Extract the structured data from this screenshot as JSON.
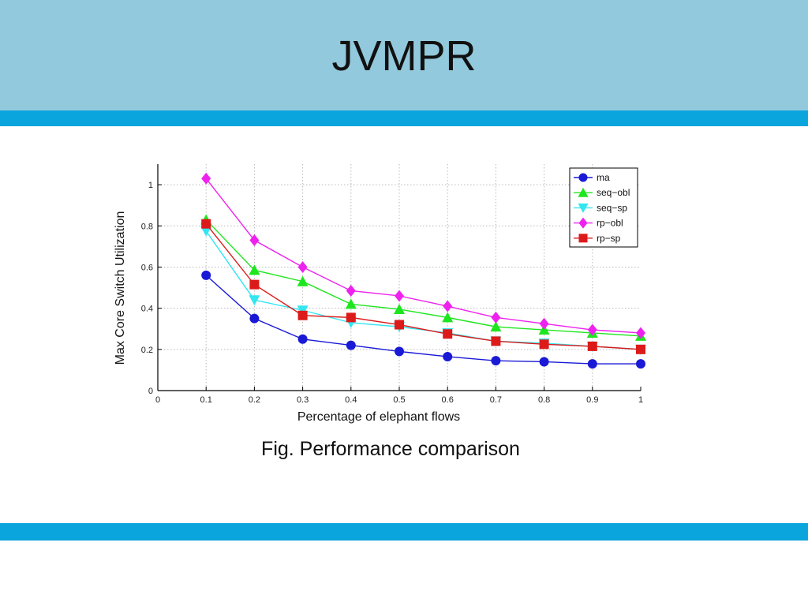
{
  "slide": {
    "title": "JVMPR",
    "caption": "Fig. Performance comparison"
  },
  "colors": {
    "title_band": "#92c9dc",
    "stripe": "#0aa5dd"
  },
  "chart_data": {
    "type": "line",
    "xlabel": "Percentage of elephant flows",
    "ylabel": "Max Core Switch Utilization",
    "xlim": [
      0,
      1
    ],
    "ylim": [
      0,
      1.1
    ],
    "grid": true,
    "legend_position": "top-right",
    "x_ticks": [
      "0",
      "0.1",
      "0.2",
      "0.3",
      "0.4",
      "0.5",
      "0.6",
      "0.7",
      "0.8",
      "0.9",
      "1"
    ],
    "y_ticks": [
      "0",
      "0.2",
      "0.4",
      "0.6",
      "0.8",
      "1"
    ],
    "x": [
      0.1,
      0.2,
      0.3,
      0.4,
      0.5,
      0.6,
      0.7,
      0.8,
      0.9,
      1.0
    ],
    "series": [
      {
        "name": "ma",
        "color": "#1a1ad6",
        "marker": "circle",
        "values": [
          0.56,
          0.35,
          0.25,
          0.22,
          0.19,
          0.165,
          0.145,
          0.14,
          0.13,
          0.13
        ]
      },
      {
        "name": "seq−obl",
        "color": "#1ee61e",
        "marker": "triangle-up",
        "values": [
          0.83,
          0.585,
          0.53,
          0.42,
          0.395,
          0.355,
          0.31,
          0.295,
          0.28,
          0.265
        ]
      },
      {
        "name": "seq−sp",
        "color": "#33e6f0",
        "marker": "triangle-down",
        "values": [
          0.775,
          0.44,
          0.39,
          0.33,
          0.31,
          0.28,
          0.24,
          0.23,
          0.215,
          0.2
        ]
      },
      {
        "name": "rp−obl",
        "color": "#ee22ee",
        "marker": "diamond",
        "values": [
          1.03,
          0.73,
          0.6,
          0.485,
          0.46,
          0.41,
          0.355,
          0.325,
          0.295,
          0.28
        ]
      },
      {
        "name": "rp−sp",
        "color": "#dd1a1a",
        "marker": "square",
        "values": [
          0.81,
          0.515,
          0.365,
          0.355,
          0.32,
          0.275,
          0.24,
          0.225,
          0.215,
          0.2
        ]
      }
    ]
  }
}
